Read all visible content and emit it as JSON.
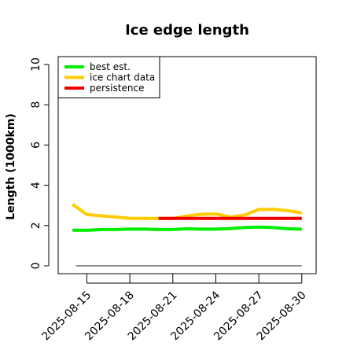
{
  "chart_data": {
    "type": "line",
    "title": "Ice edge length",
    "xlabel": "",
    "ylabel": "Length (1000km)",
    "ylim": [
      0,
      10
    ],
    "xlim": [
      "2025-08-13",
      "2025-08-31"
    ],
    "y_ticks": [
      0,
      2,
      4,
      6,
      8,
      10
    ],
    "x_ticks": [
      "2025-08-15",
      "2025-08-18",
      "2025-08-21",
      "2025-08-24",
      "2025-08-27",
      "2025-08-30"
    ],
    "grid": false,
    "legend_position": "top-left",
    "series": [
      {
        "name": "best est.",
        "color": "#00ee00",
        "x": [
          "2025-08-14",
          "2025-08-15",
          "2025-08-16",
          "2025-08-17",
          "2025-08-18",
          "2025-08-19",
          "2025-08-20",
          "2025-08-21",
          "2025-08-22",
          "2025-08-23",
          "2025-08-24",
          "2025-08-25",
          "2025-08-26",
          "2025-08-27",
          "2025-08-28",
          "2025-08-29",
          "2025-08-30"
        ],
        "values": [
          1.77,
          1.76,
          1.8,
          1.8,
          1.82,
          1.82,
          1.8,
          1.8,
          1.84,
          1.82,
          1.82,
          1.85,
          1.9,
          1.92,
          1.9,
          1.84,
          1.82
        ]
      },
      {
        "name": "ice chart data",
        "color": "#ffcc00",
        "x": [
          "2025-08-14",
          "2025-08-15",
          "2025-08-16",
          "2025-08-17",
          "2025-08-18",
          "2025-08-19",
          "2025-08-20",
          "2025-08-21",
          "2025-08-22",
          "2025-08-23",
          "2025-08-24",
          "2025-08-25",
          "2025-08-26",
          "2025-08-27",
          "2025-08-28",
          "2025-08-29",
          "2025-08-30"
        ],
        "values": [
          3.05,
          2.55,
          2.48,
          2.42,
          2.36,
          2.35,
          2.35,
          2.35,
          2.48,
          2.56,
          2.58,
          2.42,
          2.52,
          2.8,
          2.8,
          2.74,
          2.63
        ]
      },
      {
        "name": "persistence",
        "color": "#ee0000",
        "x": [
          "2025-08-20",
          "2025-08-30"
        ],
        "values": [
          2.35,
          2.35
        ]
      }
    ],
    "reference_line": {
      "value": 0,
      "color": "#666666"
    }
  }
}
